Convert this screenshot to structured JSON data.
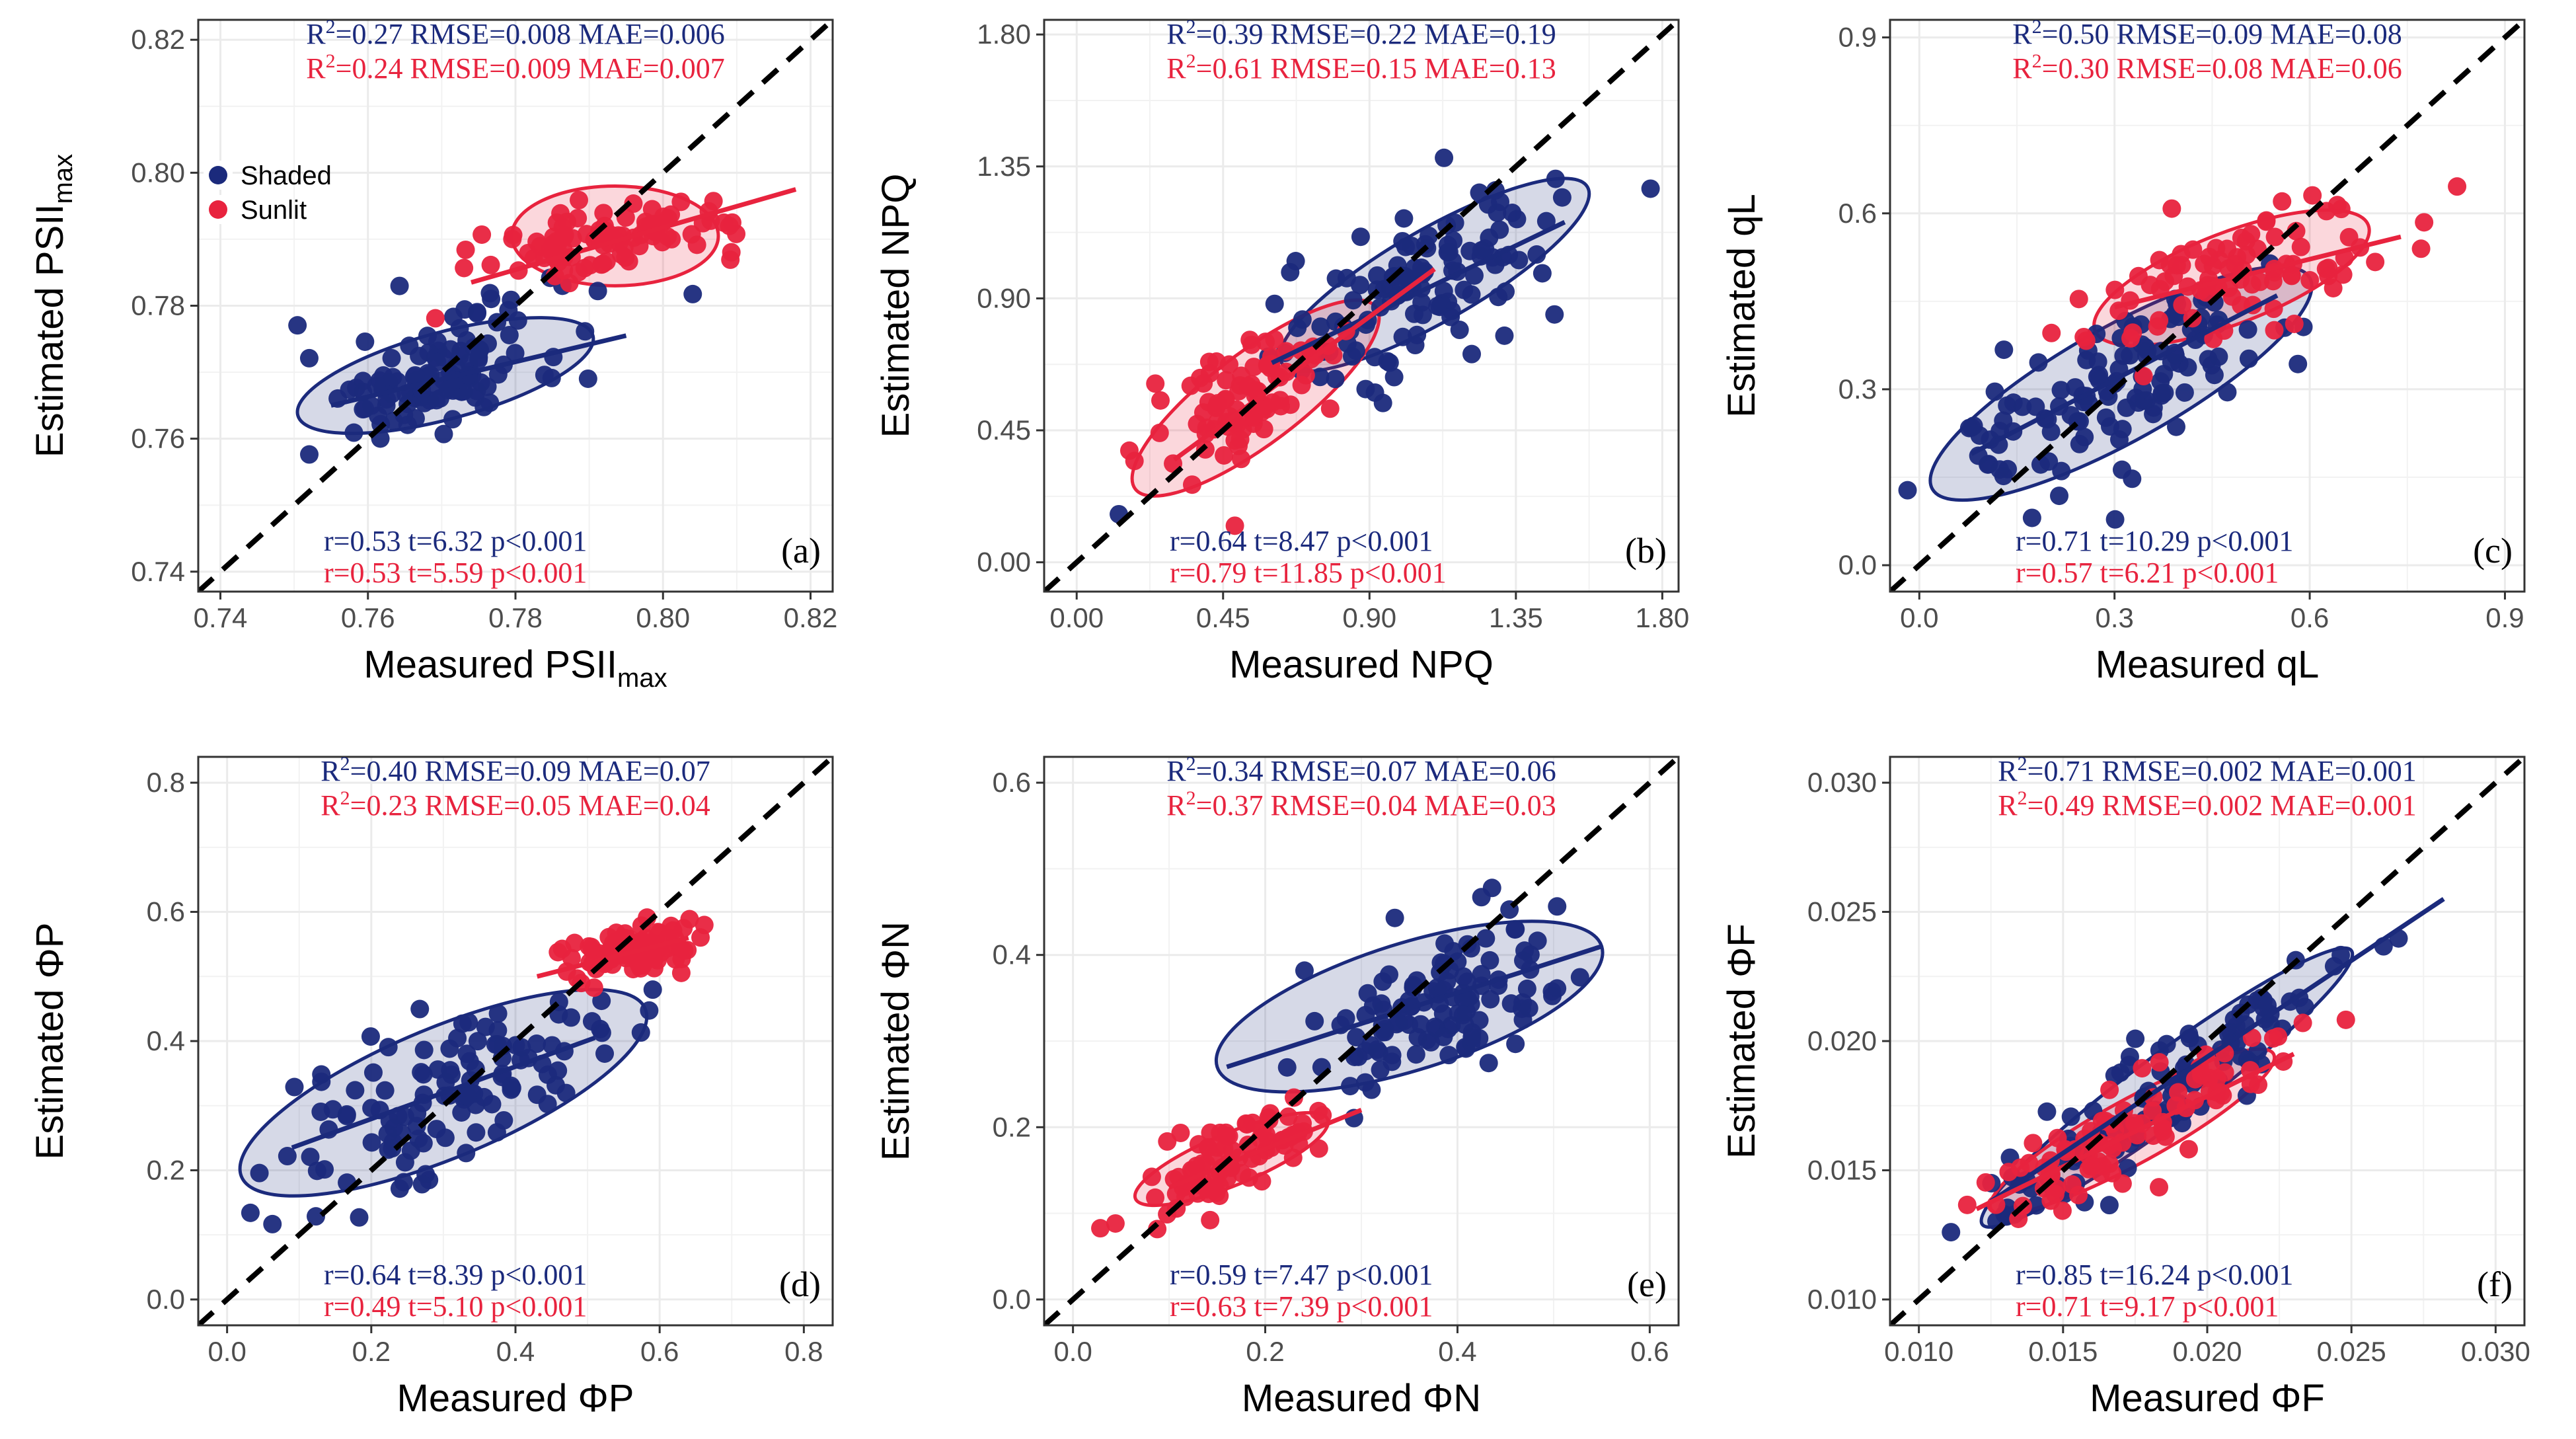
{
  "colors": {
    "shaded": "#1b2a7c",
    "sunlit": "#e8233e",
    "grid": "#ebebeb",
    "frame": "#333333"
  },
  "legend": {
    "shaded_label": "Shaded",
    "sunlit_label": "Sunlit"
  },
  "chart_data": [
    {
      "id": "a",
      "type": "scatter",
      "panel_label": "(a)",
      "xlabel": "Measured PSII",
      "xlabel_sub": "max",
      "ylabel": "Estimated PSII",
      "ylabel_sub": "max",
      "xlim": [
        0.737,
        0.823
      ],
      "ylim": [
        0.737,
        0.823
      ],
      "xticks": [
        0.74,
        0.76,
        0.78,
        0.8,
        0.82
      ],
      "yticks": [
        0.74,
        0.76,
        0.78,
        0.8,
        0.82
      ],
      "xtick_labels": [
        "0.74",
        "0.76",
        "0.78",
        "0.80",
        "0.82"
      ],
      "ytick_labels": [
        "0.74",
        "0.76",
        "0.78",
        "0.80",
        "0.82"
      ],
      "stats_top": {
        "shaded": {
          "r2": "0.27",
          "rest": " RMSE=0.008 MAE=0.006"
        },
        "sunlit": {
          "r2": "0.24",
          "rest": " RMSE=0.009 MAE=0.007"
        }
      },
      "stats_bottom": {
        "shaded": "r=0.53 t=6.32 p<0.001",
        "sunlit": "r=0.53 t=5.59 p<0.001"
      },
      "show_legend": true,
      "series": [
        {
          "name": "Shaded",
          "center": [
            0.769,
            0.7695
          ],
          "spread": [
            0.009,
            0.0045
          ],
          "slope": 0.3,
          "n": 120,
          "fit": [
            [
              0.755,
              0.765
            ],
            [
              0.795,
              0.7755
            ]
          ],
          "ellipse": {
            "center": [
              0.7705,
              0.7695
            ],
            "axis_points": [
              [
                0.7505,
                0.7635
              ],
              [
                0.77,
                0.776
              ]
            ]
          }
        },
        {
          "name": "Sunlit",
          "center": [
            0.7935,
            0.7905
          ],
          "spread": [
            0.009,
            0.0025
          ],
          "slope": 0.15,
          "n": 95,
          "fit": [
            [
              0.774,
              0.7835
            ],
            [
              0.818,
              0.7975
            ]
          ],
          "ellipse": {
            "center": [
              0.7935,
              0.7905
            ],
            "axis_points": [
              [
                0.8075,
                0.7905
              ],
              [
                0.7935,
                0.798
              ]
            ]
          }
        }
      ]
    },
    {
      "id": "b",
      "type": "scatter",
      "panel_label": "(b)",
      "xlabel": "Measured NPQ",
      "xlabel_sub": "",
      "ylabel": "Estimated NPQ",
      "ylabel_sub": "",
      "xlim": [
        -0.1,
        1.85
      ],
      "ylim": [
        -0.1,
        1.85
      ],
      "xticks": [
        0.0,
        0.45,
        0.9,
        1.35,
        1.8
      ],
      "yticks": [
        0.0,
        0.45,
        0.9,
        1.35,
        1.8
      ],
      "xtick_labels": [
        "0.00",
        "0.45",
        "0.90",
        "1.35",
        "1.80"
      ],
      "ytick_labels": [
        "0.00",
        "0.45",
        "0.90",
        "1.35",
        "1.80"
      ],
      "stats_top": {
        "shaded": {
          "r2": "0.39",
          "rest": " RMSE=0.22 MAE=0.19"
        },
        "sunlit": {
          "r2": "0.61",
          "rest": " RMSE=0.15 MAE=0.13"
        }
      },
      "stats_bottom": {
        "shaded": "r=0.64 t=8.47   p<0.001",
        "sunlit": "r=0.79 t=11.85 p<0.001"
      },
      "show_legend": false,
      "series": [
        {
          "name": "Shaded",
          "center": [
            1.07,
            0.95
          ],
          "spread": [
            0.22,
            0.13
          ],
          "slope": 0.5,
          "n": 120,
          "fit": [
            [
              0.6,
              0.68
            ],
            [
              1.5,
              1.16
            ]
          ],
          "ellipse": {
            "center": [
              1.1,
              0.98
            ],
            "axis_points": [
              [
                1.57,
                1.28
              ],
              [
                1.01,
                1.1
              ]
            ]
          }
        },
        {
          "name": "Sunlit",
          "center": [
            0.52,
            0.55
          ],
          "spread": [
            0.15,
            0.1
          ],
          "slope": 0.6,
          "n": 90,
          "fit": [
            [
              0.3,
              0.35
            ],
            [
              1.1,
              1.0
            ]
          ],
          "ellipse": {
            "center": [
              0.55,
              0.56
            ],
            "axis_points": [
              [
                0.92,
                0.87
              ],
              [
                0.46,
                0.68
              ]
            ]
          }
        }
      ]
    },
    {
      "id": "c",
      "type": "scatter",
      "panel_label": "(c)",
      "xlabel": "Measured qL",
      "xlabel_sub": "",
      "ylabel": "Estimated qL",
      "ylabel_sub": "",
      "xlim": [
        -0.045,
        0.93
      ],
      "ylim": [
        -0.045,
        0.93
      ],
      "xticks": [
        0.0,
        0.3,
        0.6,
        0.9
      ],
      "yticks": [
        0.0,
        0.3,
        0.6,
        0.9
      ],
      "xtick_labels": [
        "0.0",
        "0.3",
        "0.6",
        "0.9"
      ],
      "ytick_labels": [
        "0.0",
        "0.3",
        "0.6",
        "0.9"
      ],
      "stats_top": {
        "shaded": {
          "r2": "0.50",
          "rest": " RMSE=0.09 MAE=0.08"
        },
        "sunlit": {
          "r2": "0.30",
          "rest": " RMSE=0.08 MAE=0.06"
        }
      },
      "stats_bottom": {
        "shaded": "r=0.71 t=10.29 p<0.001",
        "sunlit": "r=0.57 t=6.21   p<0.001"
      },
      "show_legend": false,
      "series": [
        {
          "name": "Shaded",
          "center": [
            0.3,
            0.3
          ],
          "spread": [
            0.13,
            0.07
          ],
          "slope": 0.55,
          "n": 120,
          "fit": [
            [
              0.08,
              0.19
            ],
            [
              0.55,
              0.46
            ]
          ],
          "ellipse": {
            "center": [
              0.31,
              0.31
            ],
            "axis_points": [
              [
                0.6,
                0.49
              ],
              [
                0.26,
                0.39
              ]
            ]
          }
        },
        {
          "name": "Sunlit",
          "center": [
            0.5,
            0.5
          ],
          "spread": [
            0.12,
            0.05
          ],
          "slope": 0.3,
          "n": 90,
          "fit": [
            [
              0.3,
              0.44
            ],
            [
              0.74,
              0.56
            ]
          ],
          "ellipse": {
            "center": [
              0.48,
              0.49
            ],
            "axis_points": [
              [
                0.69,
                0.58
              ],
              [
                0.45,
                0.56
              ]
            ]
          }
        }
      ]
    },
    {
      "id": "d",
      "type": "scatter",
      "panel_label": "(d)",
      "xlabel": "Measured ΦP",
      "xlabel_sub": "",
      "ylabel": "Estimated ΦP",
      "ylabel_sub": "",
      "xlim": [
        -0.04,
        0.84
      ],
      "ylim": [
        -0.04,
        0.84
      ],
      "xticks": [
        0.0,
        0.2,
        0.4,
        0.6,
        0.8
      ],
      "yticks": [
        0.0,
        0.2,
        0.4,
        0.6,
        0.8
      ],
      "xtick_labels": [
        "0.0",
        "0.2",
        "0.4",
        "0.6",
        "0.8"
      ],
      "ytick_labels": [
        "0.0",
        "0.2",
        "0.4",
        "0.6",
        "0.8"
      ],
      "stats_top": {
        "shaded": {
          "r2": "0.40",
          "rest": " RMSE=0.09 MAE=0.07"
        },
        "sunlit": {
          "r2": "0.23",
          "rest": " RMSE=0.05 MAE=0.04"
        }
      },
      "stats_bottom": {
        "shaded": "r=0.64 t=8.39 p<0.001",
        "sunlit": "r=0.49 t=5.10 p<0.001"
      },
      "show_legend": false,
      "series": [
        {
          "name": "Shaded",
          "center": [
            0.3,
            0.32
          ],
          "spread": [
            0.11,
            0.06
          ],
          "slope": 0.45,
          "n": 120,
          "fit": [
            [
              0.09,
              0.235
            ],
            [
              0.51,
              0.405
            ]
          ],
          "ellipse": {
            "center": [
              0.3,
              0.32
            ],
            "axis_points": [
              [
                0.58,
                0.45
              ],
              [
                0.26,
                0.41
              ]
            ]
          }
        },
        {
          "name": "Sunlit",
          "center": [
            0.56,
            0.54
          ],
          "spread": [
            0.045,
            0.018
          ],
          "slope": 0.2,
          "n": 90,
          "fit": [
            [
              0.43,
              0.5
            ],
            [
              0.64,
              0.56
            ]
          ],
          "ellipse": null
        }
      ]
    },
    {
      "id": "e",
      "type": "scatter",
      "panel_label": "(e)",
      "xlabel": "Measured ΦN",
      "xlabel_sub": "",
      "ylabel": "Estimated ΦN",
      "ylabel_sub": "",
      "xlim": [
        -0.03,
        0.63
      ],
      "ylim": [
        -0.03,
        0.63
      ],
      "xticks": [
        0.0,
        0.2,
        0.4,
        0.6
      ],
      "yticks": [
        0.0,
        0.2,
        0.4,
        0.6
      ],
      "xtick_labels": [
        "0.0",
        "0.2",
        "0.4",
        "0.6"
      ],
      "ytick_labels": [
        "0.0",
        "0.2",
        "0.4",
        "0.6"
      ],
      "stats_top": {
        "shaded": {
          "r2": "0.34",
          "rest": " RMSE=0.07 MAE=0.06"
        },
        "sunlit": {
          "r2": "0.37",
          "rest": " RMSE=0.04 MAE=0.03"
        }
      },
      "stats_bottom": {
        "shaded": "r=0.59 t=7.47 p<0.001",
        "sunlit": "r=0.63 t=7.39 p<0.001"
      },
      "show_legend": false,
      "series": [
        {
          "name": "Shaded",
          "center": [
            0.38,
            0.34
          ],
          "spread": [
            0.07,
            0.04
          ],
          "slope": 0.4,
          "n": 120,
          "fit": [
            [
              0.16,
              0.27
            ],
            [
              0.55,
              0.41
            ]
          ],
          "ellipse": {
            "center": [
              0.35,
              0.34
            ],
            "axis_points": [
              [
                0.55,
                0.41
              ],
              [
                0.33,
                0.41
              ]
            ]
          }
        },
        {
          "name": "Sunlit",
          "center": [
            0.16,
            0.16
          ],
          "spread": [
            0.045,
            0.022
          ],
          "slope": 0.4,
          "n": 90,
          "fit": [
            [
              0.1,
              0.13
            ],
            [
              0.3,
              0.22
            ]
          ],
          "ellipse": {
            "center": [
              0.165,
              0.163
            ],
            "axis_points": [
              [
                0.265,
                0.209
              ],
              [
                0.155,
                0.191
              ]
            ]
          }
        }
      ]
    },
    {
      "id": "f",
      "type": "scatter",
      "panel_label": "(f)",
      "xlabel": "Measured ΦF",
      "xlabel_sub": "",
      "ylabel": "Estimated ΦF",
      "ylabel_sub": "",
      "xlim": [
        0.009,
        0.031
      ],
      "ylim": [
        0.009,
        0.031
      ],
      "xticks": [
        0.01,
        0.015,
        0.02,
        0.025,
        0.03
      ],
      "yticks": [
        0.01,
        0.015,
        0.02,
        0.025,
        0.03
      ],
      "xtick_labels": [
        "0.010",
        "0.015",
        "0.020",
        "0.025",
        "0.030"
      ],
      "ytick_labels": [
        "0.010",
        "0.015",
        "0.020",
        "0.025",
        "0.030"
      ],
      "stats_top": {
        "shaded": {
          "r2": "0.71",
          "rest": " RMSE=0.002 MAE=0.001"
        },
        "sunlit": {
          "r2": "0.49",
          "rest": " RMSE=0.002 MAE=0.001"
        }
      },
      "stats_bottom": {
        "shaded": "r=0.85 t=16.24 p<0.001",
        "sunlit": "r=0.71 t=9.17   p<0.001"
      },
      "show_legend": false,
      "series": [
        {
          "name": "Shaded",
          "center": [
            0.0185,
            0.018
          ],
          "spread": [
            0.003,
            0.001
          ],
          "slope": 0.75,
          "n": 120,
          "fit": [
            [
              0.0125,
              0.0138
            ],
            [
              0.0282,
              0.0255
            ]
          ],
          "ellipse": {
            "center": [
              0.0186,
              0.0182
            ],
            "axis_points": [
              [
                0.025,
                0.0235
              ],
              [
                0.018,
                0.0193
              ]
            ]
          }
        },
        {
          "name": "Sunlit",
          "center": [
            0.0175,
            0.0167
          ],
          "spread": [
            0.0025,
            0.0009
          ],
          "slope": 0.6,
          "n": 90,
          "fit": [
            [
              0.012,
              0.0135
            ],
            [
              0.023,
              0.0195
            ]
          ],
          "ellipse": {
            "center": [
              0.0174,
              0.0165
            ],
            "axis_points": [
              [
                0.0223,
                0.0195
              ],
              [
                0.0169,
                0.0176
              ]
            ]
          }
        }
      ]
    }
  ]
}
